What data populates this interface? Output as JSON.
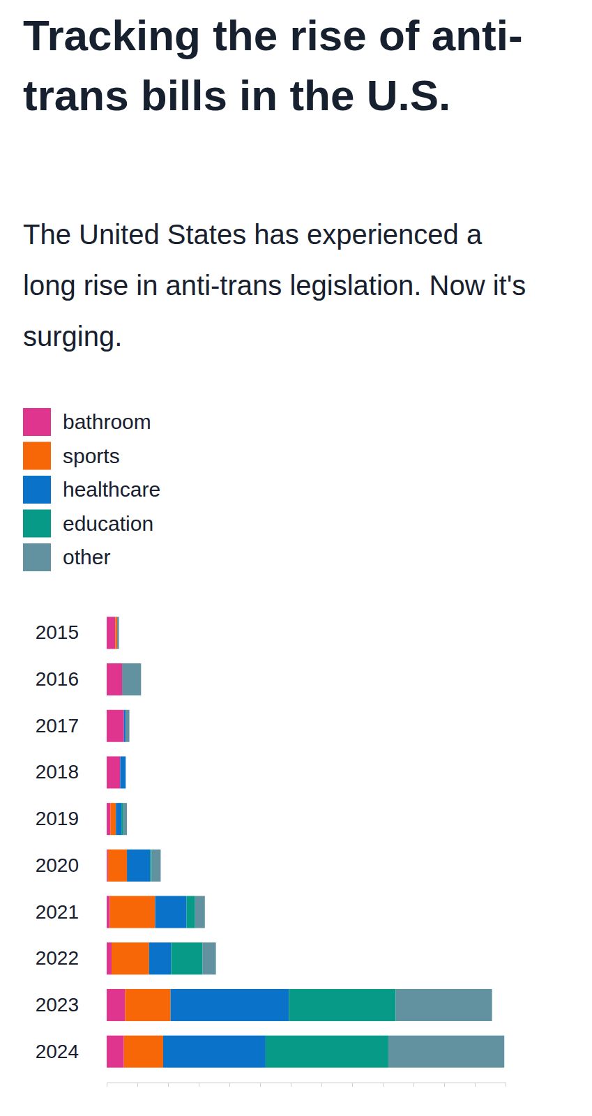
{
  "chart_data": {
    "type": "bar",
    "orientation": "horizontal",
    "stacked": true,
    "title": "Tracking the rise of anti-trans bills in the U.S.",
    "subtitle": "The United States has experienced a long rise in anti-trans legislation. Now it's surging.",
    "categories": [
      "2015",
      "2016",
      "2017",
      "2018",
      "2019",
      "2020",
      "2021",
      "2022",
      "2023",
      "2024"
    ],
    "series": [
      {
        "name": "bathroom",
        "color": "#e0358f",
        "values": [
          14,
          25,
          28,
          22,
          6,
          2,
          5,
          8,
          30,
          28
        ]
      },
      {
        "name": "sports",
        "color": "#f76707",
        "values": [
          3,
          0,
          0,
          0,
          9,
          31,
          74,
          61,
          74,
          64
        ]
      },
      {
        "name": "healthcare",
        "color": "#0a72c8",
        "values": [
          0,
          0,
          3,
          9,
          9,
          38,
          51,
          36,
          193,
          167
        ]
      },
      {
        "name": "education",
        "color": "#079a86",
        "values": [
          0,
          0,
          0,
          0,
          3,
          2,
          14,
          51,
          174,
          200
        ]
      },
      {
        "name": "other",
        "color": "#6291a0",
        "values": [
          3,
          31,
          6,
          0,
          6,
          15,
          16,
          22,
          157,
          189
        ]
      }
    ],
    "xlim": [
      0,
      650
    ],
    "xticks": [
      0,
      50,
      100,
      150,
      200,
      250,
      300,
      350,
      400,
      450,
      500,
      550,
      600,
      650
    ],
    "tick_labels": false,
    "legend": "top-left"
  }
}
